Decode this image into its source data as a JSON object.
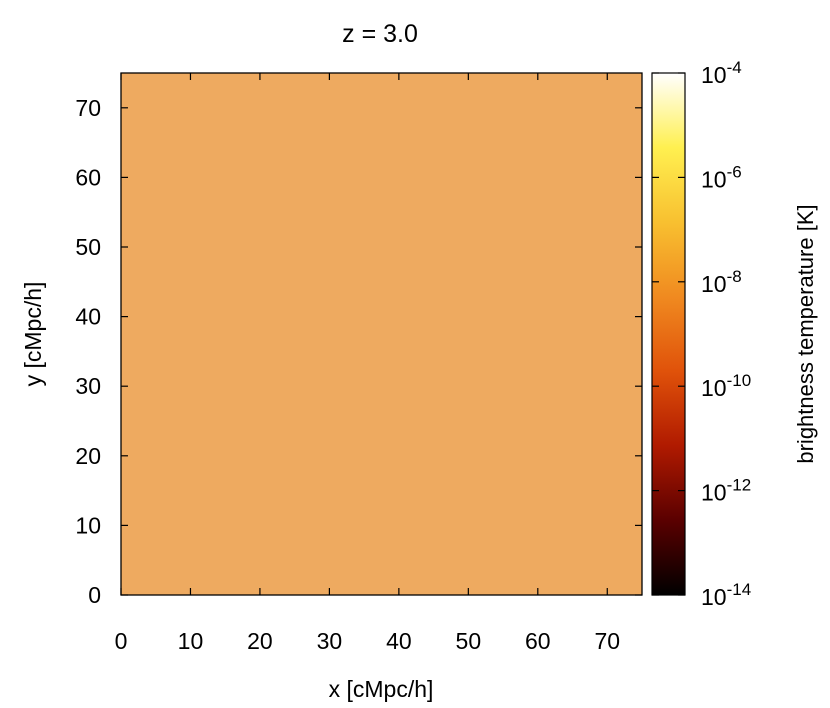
{
  "chart_data": {
    "type": "heatmap",
    "title": "z = 3.0",
    "xlabel": "x [cMpc/h]",
    "ylabel": "y [cMpc/h]",
    "xlim": [
      0,
      75
    ],
    "ylim": [
      0,
      75
    ],
    "x_ticks": [
      "0",
      "10",
      "20",
      "30",
      "40",
      "50",
      "60",
      "70"
    ],
    "y_ticks": [
      "0",
      "10",
      "20",
      "30",
      "40",
      "50",
      "60",
      "70"
    ],
    "colorbar": {
      "label": "brightness temperature [K]",
      "scale": "log",
      "range": [
        1e-14,
        0.0001
      ],
      "ticks": [
        {
          "value": -4,
          "base": "10",
          "exp": "-4"
        },
        {
          "value": -6,
          "base": "10",
          "exp": "-6"
        },
        {
          "value": -8,
          "base": "10",
          "exp": "-8"
        },
        {
          "value": -10,
          "base": "10",
          "exp": "-10"
        },
        {
          "value": -12,
          "base": "10",
          "exp": "-12"
        },
        {
          "value": -14,
          "base": "10",
          "exp": "-14"
        }
      ],
      "colormap": [
        "#000000",
        "#5a0000",
        "#b01a00",
        "#e0520a",
        "#f08a20",
        "#f8c030",
        "#fff050",
        "#ffffff"
      ]
    },
    "grid": false
  }
}
